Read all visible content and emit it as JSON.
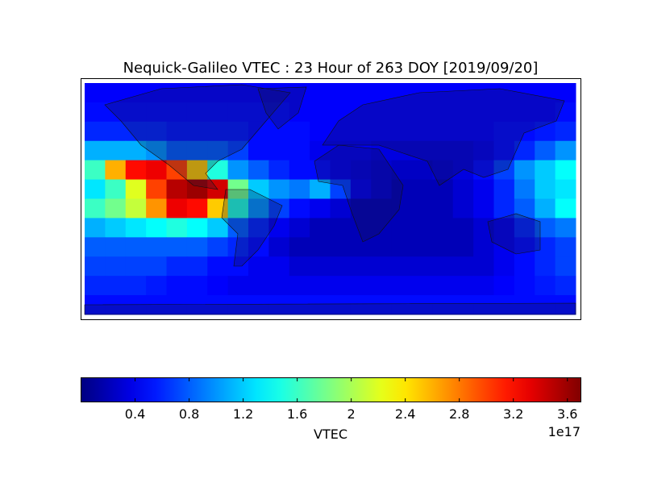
{
  "chart_data": {
    "type": "heatmap",
    "title": "Nequick-Galileo VTEC : 23 Hour of 263 DOY [2019/09/20]",
    "colorbar_label": "VTEC",
    "colorbar_offset_label": "1e17",
    "colormap": "jet",
    "zlim": [
      0,
      3.7
    ],
    "zticks": [
      0.4,
      0.8,
      1.2,
      1.6,
      2.0,
      2.4,
      2.8,
      3.2,
      3.6
    ],
    "x": [
      -172.5,
      -157.5,
      -142.5,
      -127.5,
      -112.5,
      -97.5,
      -82.5,
      -67.5,
      -52.5,
      -37.5,
      -22.5,
      -7.5,
      7.5,
      22.5,
      37.5,
      52.5,
      67.5,
      82.5,
      97.5,
      112.5,
      127.5,
      142.5,
      157.5,
      172.5
    ],
    "y": [
      82.5,
      67.5,
      52.5,
      37.5,
      22.5,
      7.5,
      -7.5,
      -22.5,
      -37.5,
      -52.5,
      -67.5,
      -82.5
    ],
    "xlim": [
      -180,
      180
    ],
    "ylim": [
      -90,
      90
    ],
    "values": [
      [
        0.45,
        0.45,
        0.45,
        0.45,
        0.45,
        0.45,
        0.45,
        0.45,
        0.45,
        0.45,
        0.45,
        0.45,
        0.45,
        0.45,
        0.45,
        0.45,
        0.45,
        0.45,
        0.45,
        0.45,
        0.45,
        0.45,
        0.45,
        0.45
      ],
      [
        0.5,
        0.5,
        0.5,
        0.5,
        0.5,
        0.5,
        0.5,
        0.5,
        0.5,
        0.5,
        0.45,
        0.45,
        0.45,
        0.45,
        0.45,
        0.45,
        0.45,
        0.45,
        0.45,
        0.45,
        0.45,
        0.45,
        0.45,
        0.5
      ],
      [
        0.6,
        0.6,
        0.6,
        0.6,
        0.55,
        0.55,
        0.55,
        0.55,
        0.5,
        0.5,
        0.5,
        0.45,
        0.45,
        0.45,
        0.45,
        0.45,
        0.45,
        0.45,
        0.45,
        0.45,
        0.5,
        0.5,
        0.55,
        0.6
      ],
      [
        1.1,
        1.1,
        1.1,
        1.0,
        0.8,
        0.8,
        0.8,
        0.7,
        0.5,
        0.5,
        0.5,
        0.4,
        0.4,
        0.4,
        0.35,
        0.35,
        0.35,
        0.35,
        0.35,
        0.4,
        0.5,
        0.6,
        0.8,
        1.0
      ],
      [
        1.6,
        2.6,
        3.2,
        3.3,
        3.0,
        2.5,
        1.5,
        1.0,
        0.8,
        0.6,
        0.5,
        0.5,
        0.4,
        0.35,
        0.3,
        0.25,
        0.25,
        0.3,
        0.35,
        0.5,
        0.7,
        1.0,
        1.2,
        1.4
      ],
      [
        1.3,
        1.6,
        2.2,
        3.0,
        3.5,
        3.6,
        3.4,
        1.8,
        1.2,
        1.0,
        0.9,
        1.1,
        0.7,
        0.4,
        0.3,
        0.2,
        0.2,
        0.2,
        0.3,
        0.4,
        0.6,
        0.9,
        1.2,
        1.3
      ],
      [
        1.6,
        1.8,
        2.1,
        2.7,
        3.3,
        3.2,
        2.5,
        1.5,
        1.0,
        0.7,
        0.5,
        0.4,
        0.3,
        0.2,
        0.2,
        0.2,
        0.2,
        0.2,
        0.3,
        0.4,
        0.6,
        0.8,
        1.1,
        1.4
      ],
      [
        1.1,
        1.2,
        1.3,
        1.4,
        1.5,
        1.4,
        1.2,
        0.8,
        0.6,
        0.4,
        0.3,
        0.2,
        0.2,
        0.2,
        0.2,
        0.2,
        0.2,
        0.2,
        0.2,
        0.3,
        0.4,
        0.6,
        0.8,
        0.9
      ],
      [
        0.8,
        0.8,
        0.8,
        0.8,
        0.8,
        0.8,
        0.7,
        0.6,
        0.5,
        0.3,
        0.2,
        0.2,
        0.2,
        0.2,
        0.2,
        0.2,
        0.2,
        0.2,
        0.2,
        0.3,
        0.4,
        0.5,
        0.6,
        0.7
      ],
      [
        0.7,
        0.7,
        0.7,
        0.7,
        0.6,
        0.6,
        0.5,
        0.5,
        0.4,
        0.4,
        0.3,
        0.3,
        0.3,
        0.3,
        0.3,
        0.3,
        0.3,
        0.3,
        0.3,
        0.3,
        0.4,
        0.5,
        0.6,
        0.7
      ],
      [
        0.6,
        0.6,
        0.6,
        0.55,
        0.5,
        0.5,
        0.45,
        0.4,
        0.4,
        0.4,
        0.4,
        0.4,
        0.4,
        0.4,
        0.4,
        0.4,
        0.4,
        0.4,
        0.4,
        0.4,
        0.45,
        0.5,
        0.55,
        0.6
      ],
      [
        0.5,
        0.5,
        0.5,
        0.5,
        0.5,
        0.5,
        0.5,
        0.5,
        0.5,
        0.5,
        0.5,
        0.5,
        0.5,
        0.5,
        0.5,
        0.5,
        0.5,
        0.5,
        0.5,
        0.5,
        0.5,
        0.5,
        0.5,
        0.5
      ]
    ]
  }
}
